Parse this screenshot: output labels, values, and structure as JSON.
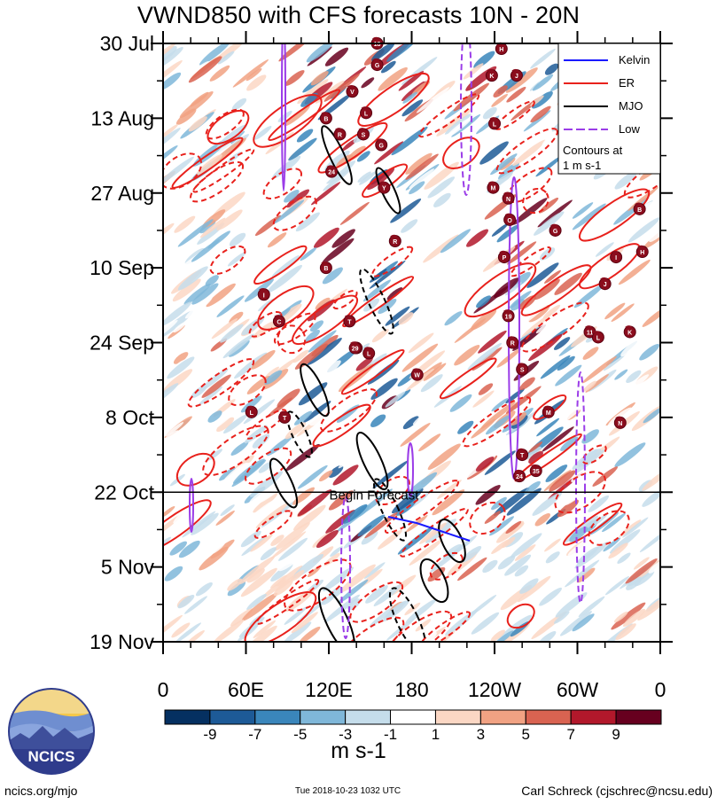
{
  "chart_data": {
    "type": "heatmap",
    "title": "VWND850 with CFS forecasts  10N - 20N",
    "variable": "VWND850",
    "latitude_band": "10N - 20N",
    "x_ticks": [
      "0",
      "60E",
      "120E",
      "180",
      "120W",
      "60W",
      "0"
    ],
    "y_ticks": [
      "30 Jul",
      "13 Aug",
      "27 Aug",
      "10 Sep",
      "24 Sep",
      "8 Oct",
      "22 Oct",
      "5 Nov",
      "19 Nov"
    ],
    "y_reversed": true,
    "forecast_start": "22 Oct",
    "forecast_label": "Begin Forecast",
    "colorbar": {
      "labels": [
        "-9",
        "-7",
        "-5",
        "-3",
        "-1",
        "1",
        "3",
        "5",
        "7",
        "9"
      ],
      "colors": [
        "#053061",
        "#1d5a97",
        "#3a86bb",
        "#7fb7d9",
        "#c5ddeb",
        "#ffffff",
        "#fbd7c4",
        "#f1a283",
        "#d96351",
        "#b2182b",
        "#67001f"
      ],
      "unit": "m s-1"
    },
    "legend": {
      "entries": [
        {
          "name": "Kelvin",
          "color": "#1a1aff"
        },
        {
          "name": "ER",
          "color": "#e8211c"
        },
        {
          "name": "MJO",
          "color": "#000000"
        },
        {
          "name": "Low",
          "color": "#9b3de8"
        }
      ],
      "note_line1": "Contours at",
      "note_line2": "1 m s-1",
      "position": "top-right"
    },
    "storm_markers": [
      {
        "label": "18",
        "lon": 155,
        "date": "30 Jul"
      },
      {
        "label": "G",
        "lon": 155,
        "date": "3 Aug"
      },
      {
        "label": "V",
        "lon": 137,
        "date": "8 Aug"
      },
      {
        "label": "L",
        "lon": 147,
        "date": "12 Aug"
      },
      {
        "label": "B",
        "lon": 118,
        "date": "13 Aug"
      },
      {
        "label": "R",
        "lon": 128,
        "date": "16 Aug"
      },
      {
        "label": "S",
        "lon": 145,
        "date": "16 Aug"
      },
      {
        "label": "G",
        "lon": 158,
        "date": "18 Aug"
      },
      {
        "label": "24",
        "lon": 122,
        "date": "23 Aug"
      },
      {
        "label": "Y",
        "lon": 160,
        "date": "26 Aug"
      },
      {
        "label": "H",
        "lon": 245,
        "date": "31 Jul"
      },
      {
        "label": "K",
        "lon": 238,
        "date": "5 Aug"
      },
      {
        "label": "J",
        "lon": 256,
        "date": "5 Aug"
      },
      {
        "label": "L",
        "lon": 240,
        "date": "14 Aug"
      },
      {
        "label": "M",
        "lon": 239,
        "date": "26 Aug"
      },
      {
        "label": "N",
        "lon": 250,
        "date": "28 Aug"
      },
      {
        "label": "O",
        "lon": 251,
        "date": "1 Sep"
      },
      {
        "label": "P",
        "lon": 247,
        "date": "8 Sep"
      },
      {
        "label": "G",
        "lon": 284,
        "date": "3 Sep"
      },
      {
        "label": "B",
        "lon": 345,
        "date": "30 Aug"
      },
      {
        "label": "H",
        "lon": 347,
        "date": "7 Sep"
      },
      {
        "label": "I",
        "lon": 328,
        "date": "8 Sep"
      },
      {
        "label": "J",
        "lon": 320,
        "date": "13 Sep"
      },
      {
        "label": "R",
        "lon": 168,
        "date": "5 Sep"
      },
      {
        "label": "B",
        "lon": 118,
        "date": "10 Sep"
      },
      {
        "label": "I",
        "lon": 73,
        "date": "15 Sep"
      },
      {
        "label": "C",
        "lon": 84,
        "date": "20 Sep"
      },
      {
        "label": "T",
        "lon": 135,
        "date": "20 Sep"
      },
      {
        "label": "K",
        "lon": 140,
        "date": "25 Sep"
      },
      {
        "label": "L",
        "lon": 149,
        "date": "26 Sep"
      },
      {
        "label": "29",
        "lon": 139,
        "date": "25 Sep"
      },
      {
        "label": "19",
        "lon": 250,
        "date": "19 Sep"
      },
      {
        "label": "R",
        "lon": 253,
        "date": "24 Sep"
      },
      {
        "label": "S",
        "lon": 260,
        "date": "29 Sep"
      },
      {
        "label": "11",
        "lon": 309,
        "date": "22 Sep"
      },
      {
        "label": "L",
        "lon": 315,
        "date": "23 Sep"
      },
      {
        "label": "K",
        "lon": 338,
        "date": "22 Sep"
      },
      {
        "label": "W",
        "lon": 184,
        "date": "30 Sep"
      },
      {
        "label": "L",
        "lon": 64,
        "date": "7 Oct"
      },
      {
        "label": "T",
        "lon": 88,
        "date": "8 Oct"
      },
      {
        "label": "M",
        "lon": 279,
        "date": "7 Oct"
      },
      {
        "label": "N",
        "lon": 331,
        "date": "9 Oct"
      },
      {
        "label": "T",
        "lon": 260,
        "date": "15 Oct"
      },
      {
        "label": "24",
        "lon": 258,
        "date": "19 Oct"
      },
      {
        "label": "35",
        "lon": 270,
        "date": "18 Oct"
      }
    ]
  },
  "footer": {
    "left": "ncics.org/mjo",
    "mid": "Tue 2018-10-23 1032 UTC",
    "right": "Carl Schreck (cjschrec@ncsu.edu)",
    "logo_text": "NCICS"
  }
}
